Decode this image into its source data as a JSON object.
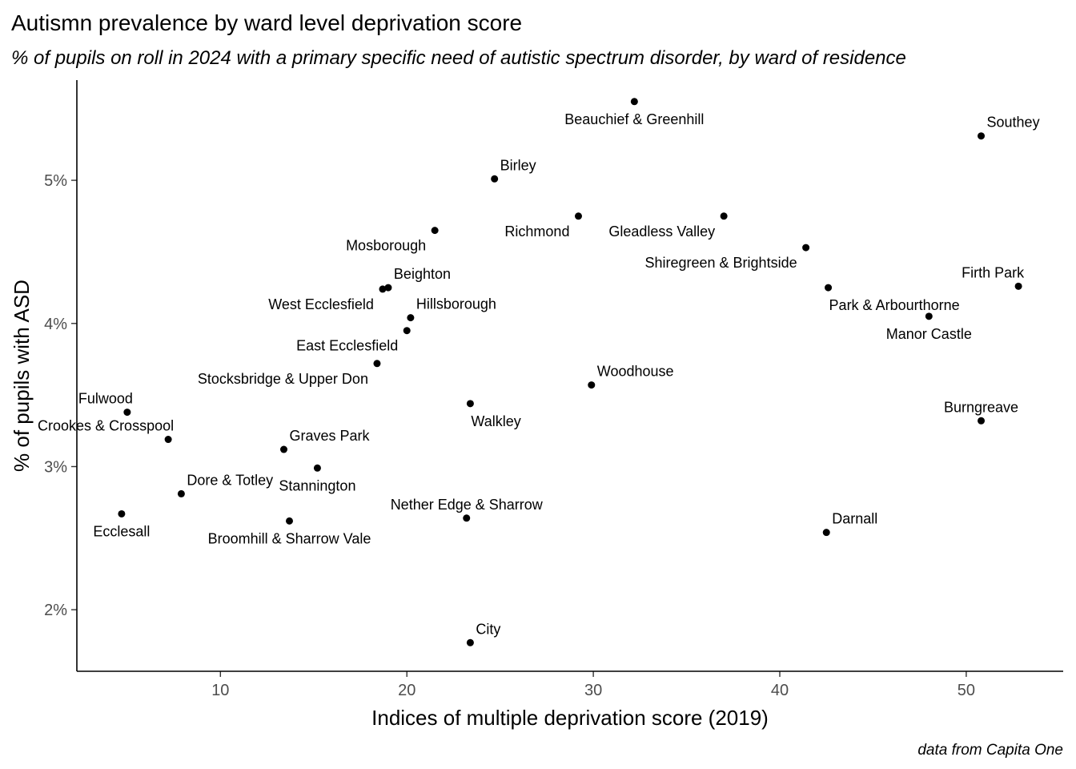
{
  "chart_data": {
    "type": "scatter",
    "title": "Autismn prevalence by ward level deprivation score",
    "subtitle": "% of pupils on roll in 2024 with a primary specific need of autistic spectrum disorder, by ward of residence",
    "xlabel": "Indices of multiple deprivation score (2019)",
    "ylabel": "% of pupils with ASD",
    "caption": "data from Capita One",
    "xlim": [
      2.3,
      55.2
    ],
    "ylim": [
      1.57,
      5.7
    ],
    "x_ticks": [
      10,
      20,
      30,
      40,
      50
    ],
    "y_ticks": [
      {
        "value": 2,
        "label": "2%"
      },
      {
        "value": 3,
        "label": "3%"
      },
      {
        "value": 4,
        "label": "4%"
      },
      {
        "value": 5,
        "label": "5%"
      }
    ],
    "grid": false,
    "point_color": "#000000",
    "points": [
      {
        "label": "Beauchief & Greenhill",
        "x": 32.2,
        "y": 5.55,
        "label_pos": "below"
      },
      {
        "label": "Southey",
        "x": 50.8,
        "y": 5.31,
        "label_pos": "above-right"
      },
      {
        "label": "Birley",
        "x": 24.7,
        "y": 5.01,
        "label_pos": "above-right"
      },
      {
        "label": "Richmond",
        "x": 29.2,
        "y": 4.75,
        "label_pos": "below-left"
      },
      {
        "label": "Gleadless Valley",
        "x": 37.0,
        "y": 4.75,
        "label_pos": "below-left"
      },
      {
        "label": "Mosborough",
        "x": 21.5,
        "y": 4.65,
        "label_pos": "below-left"
      },
      {
        "label": "Shiregreen & Brightside",
        "x": 41.4,
        "y": 4.53,
        "label_pos": "below-left"
      },
      {
        "label": "Beighton",
        "x": 19.0,
        "y": 4.25,
        "label_pos": "above-right"
      },
      {
        "label": "West Ecclesfield",
        "x": 18.7,
        "y": 4.24,
        "label_pos": "below-left"
      },
      {
        "label": "Firth Park",
        "x": 52.8,
        "y": 4.26,
        "label_pos": "above-left"
      },
      {
        "label": "Park & Arbourthorne",
        "x": 42.6,
        "y": 4.25,
        "label_pos": "below-right"
      },
      {
        "label": "Manor Castle",
        "x": 48.0,
        "y": 4.05,
        "label_pos": "below"
      },
      {
        "label": "Hillsborough",
        "x": 20.2,
        "y": 4.04,
        "label_pos": "above-right"
      },
      {
        "label": "East Ecclesfield",
        "x": 20.0,
        "y": 3.95,
        "label_pos": "below-left"
      },
      {
        "label": "Stocksbridge & Upper Don",
        "x": 18.4,
        "y": 3.72,
        "label_pos": "below-left"
      },
      {
        "label": "Woodhouse",
        "x": 29.9,
        "y": 3.57,
        "label_pos": "above-right"
      },
      {
        "label": "Walkley",
        "x": 23.4,
        "y": 3.44,
        "label_pos": "below-right"
      },
      {
        "label": "Fulwood",
        "x": 5.0,
        "y": 3.38,
        "label_pos": "above-left"
      },
      {
        "label": "Burngreave",
        "x": 50.8,
        "y": 3.32,
        "label_pos": "above"
      },
      {
        "label": "Crookes & Crosspool",
        "x": 7.2,
        "y": 3.19,
        "label_pos": "above-left"
      },
      {
        "label": "Graves Park",
        "x": 13.4,
        "y": 3.12,
        "label_pos": "above-right"
      },
      {
        "label": "Stannington",
        "x": 15.2,
        "y": 2.99,
        "label_pos": "below"
      },
      {
        "label": "Dore & Totley",
        "x": 7.9,
        "y": 2.81,
        "label_pos": "above-right"
      },
      {
        "label": "Ecclesall",
        "x": 4.7,
        "y": 2.67,
        "label_pos": "below"
      },
      {
        "label": "Nether Edge & Sharrow",
        "x": 23.2,
        "y": 2.64,
        "label_pos": "above"
      },
      {
        "label": "Broomhill & Sharrow Vale",
        "x": 13.7,
        "y": 2.62,
        "label_pos": "below"
      },
      {
        "label": "Darnall",
        "x": 42.5,
        "y": 2.54,
        "label_pos": "above-right"
      },
      {
        "label": "City",
        "x": 23.4,
        "y": 1.77,
        "label_pos": "above-right"
      }
    ]
  }
}
